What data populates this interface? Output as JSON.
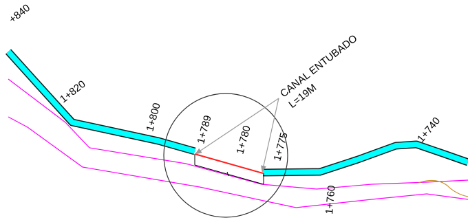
{
  "stations": {
    "s840": "+840",
    "s820": "1+820",
    "s800": "1+800",
    "s789": "1+789",
    "s780": "1+780",
    "s775": "1+775",
    "s760": "1+760",
    "s740": "1+740"
  },
  "callout": {
    "line1": "CANAL ENTUBADO",
    "line2": "L=19M"
  },
  "colors": {
    "canal_fill": "#00ffff",
    "canal_edge": "#1a1a1a",
    "offset_lines": "#ff00ff",
    "piped_segment": "#ff2020",
    "detail_circle": "#333333",
    "leader_arrows": "#9a9a9a",
    "contour": "#c8902a"
  }
}
